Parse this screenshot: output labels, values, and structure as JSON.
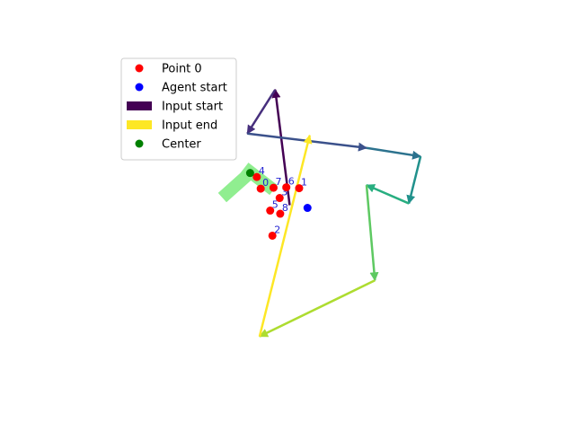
{
  "chart_data": {
    "type": "scatter",
    "title": "",
    "xlabel": "",
    "ylabel": "",
    "axes_visible": false,
    "xlim": [
      -4,
      4
    ],
    "ylim": [
      -3.7,
      3.7
    ],
    "legend": {
      "placement": "upper-left",
      "entries": [
        {
          "label": "Point 0",
          "kind": "marker",
          "color": "#ff0000"
        },
        {
          "label": "Agent start",
          "kind": "marker",
          "color": "#0000ff"
        },
        {
          "label": "Input start",
          "kind": "patch",
          "color": "#440154"
        },
        {
          "label": "Input end",
          "kind": "patch",
          "color": "#fde725"
        },
        {
          "label": "Center",
          "kind": "marker",
          "color": "#008000"
        }
      ]
    },
    "points": [
      {
        "label": "0",
        "x": -0.61,
        "y": 0.65
      },
      {
        "label": "1",
        "x": 0.08,
        "y": 0.66
      },
      {
        "label": "2",
        "x": -0.4,
        "y": -0.4
      },
      {
        "label": "3",
        "x": -0.27,
        "y": 0.44
      },
      {
        "label": "4",
        "x": -0.68,
        "y": 0.91
      },
      {
        "label": "5",
        "x": -0.44,
        "y": 0.16
      },
      {
        "label": "6",
        "x": -0.15,
        "y": 0.68
      },
      {
        "label": "7",
        "x": -0.38,
        "y": 0.67
      },
      {
        "label": "8",
        "x": -0.26,
        "y": 0.09
      }
    ],
    "agent_start": {
      "x": 0.23,
      "y": 0.22
    },
    "center": {
      "x": -0.8,
      "y": 1.0
    },
    "path": [
      {
        "x": -0.09,
        "y": 0.28
      },
      {
        "x": -0.35,
        "y": 2.86
      },
      {
        "x": -0.85,
        "y": 1.88
      },
      {
        "x": 1.29,
        "y": 1.56
      },
      {
        "x": 2.26,
        "y": 1.37
      },
      {
        "x": 2.05,
        "y": 0.32
      },
      {
        "x": 1.29,
        "y": 0.73
      },
      {
        "x": 1.44,
        "y": -1.4
      },
      {
        "x": -0.63,
        "y": -2.65
      },
      {
        "x": 0.27,
        "y": 1.84
      }
    ],
    "path_colors": [
      "#440154",
      "#472f7d",
      "#3b518b",
      "#2c728e",
      "#21918c",
      "#28ae80",
      "#5ec962",
      "#addc30",
      "#fde725"
    ],
    "shape": {
      "color": "#90ee90",
      "segments": [
        {
          "x1": -1.3,
          "y1": 0.45,
          "x2": -0.85,
          "y2": 0.95
        },
        {
          "x1": -0.9,
          "y1": 1.12,
          "x2": -0.38,
          "y2": 0.62
        }
      ]
    }
  }
}
